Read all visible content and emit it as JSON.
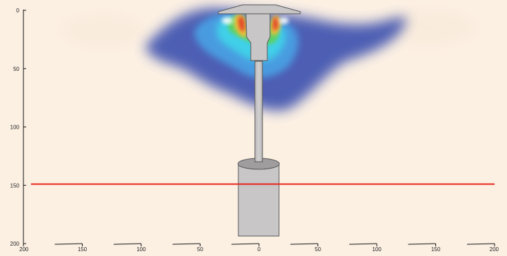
{
  "figure": {
    "background_color": "#fcf0e3",
    "y_axis": {
      "ticks": [
        "0",
        "50",
        "100",
        "150",
        "200"
      ],
      "range": [
        0,
        200
      ]
    },
    "x_axis": {
      "ticks": [
        "200",
        "150",
        "100",
        "50",
        "0",
        "50",
        "100",
        "150",
        "200"
      ],
      "range": [
        -200,
        200
      ]
    },
    "reference_line": {
      "y_value": 149,
      "color": "#e8231b"
    },
    "heater": {
      "color": "#c8c6c7",
      "outline": "#555555"
    },
    "heat_plume": {
      "colormap": [
        "#3a4fae",
        "#4a9be0",
        "#3fd0e8",
        "#5ad16b",
        "#f0c23a",
        "#e0452a"
      ]
    }
  }
}
